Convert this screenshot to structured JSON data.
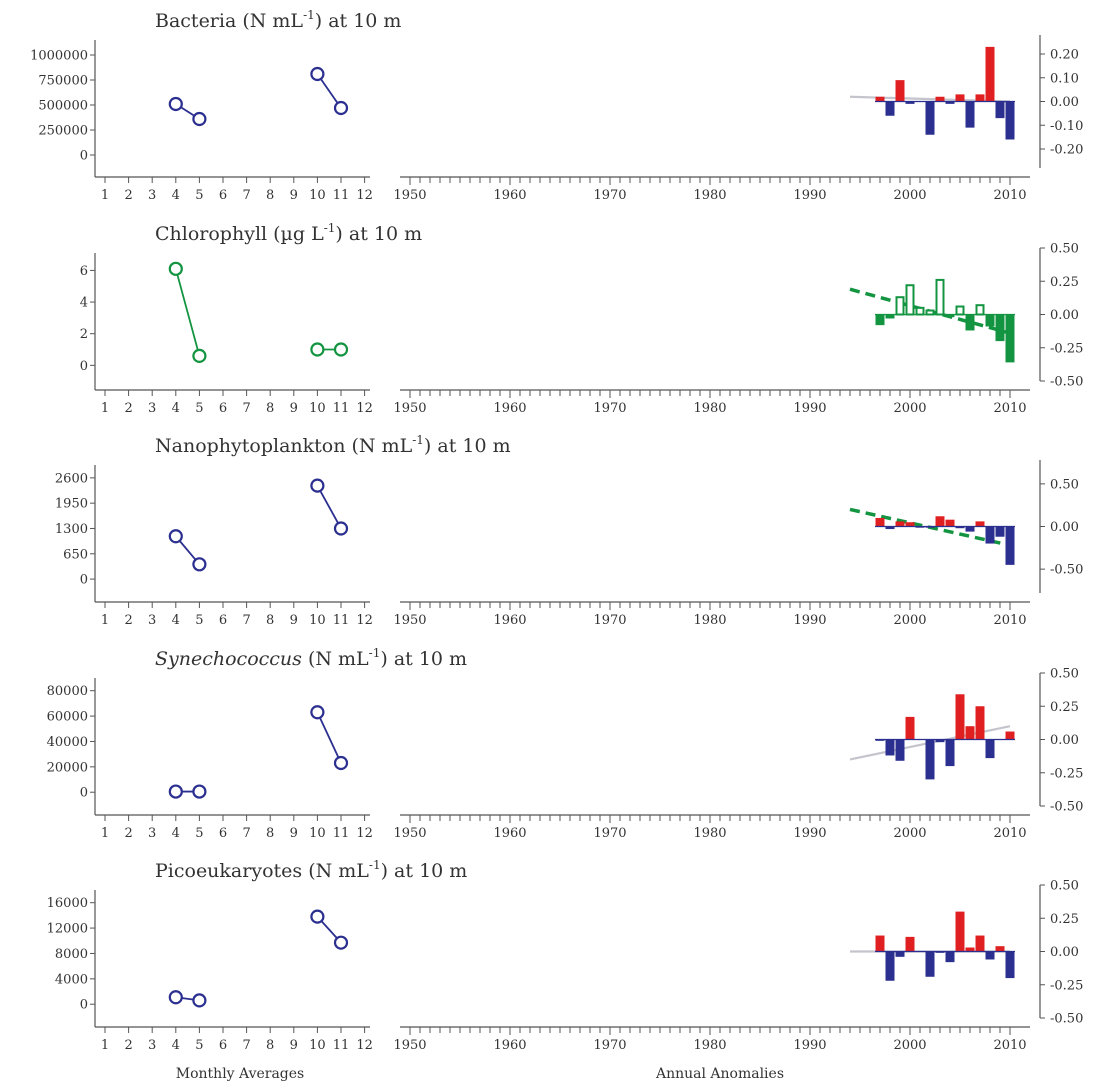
{
  "footer": {
    "monthly_label": "Monthly Averages",
    "annual_label": "Annual Anomalies"
  },
  "colors": {
    "blue": "#2b2f8f",
    "red": "#e02020",
    "green": "#139440",
    "trend_gray": "#c4c4cc"
  },
  "chart_data": [
    {
      "type": "line+bar",
      "title_prefix": "Bacteria (N mL",
      "title_italic": "",
      "title_sup": "-1",
      "title_suffix": ") at 10 m",
      "monthly": {
        "x_ticks": [
          "1",
          "2",
          "3",
          "4",
          "5",
          "6",
          "7",
          "8",
          "9",
          "10",
          "11",
          "12"
        ],
        "y_ticks": [
          "0",
          "250000",
          "500000",
          "750000",
          "1000000"
        ],
        "y_tick_values": [
          0,
          250000,
          500000,
          750000,
          1000000
        ],
        "ylim": [
          -100000,
          1150000
        ],
        "color": "blue",
        "segments": [
          [
            [
              4,
              510000
            ],
            [
              5,
              360000
            ]
          ],
          [
            [
              10,
              810000
            ],
            [
              11,
              470000
            ]
          ]
        ]
      },
      "annual": {
        "x_ticks": [
          "1950",
          "1960",
          "1970",
          "1980",
          "1990",
          "2000",
          "2010"
        ],
        "xlim": [
          1949,
          2011
        ],
        "y_ticks": [
          "-0.20",
          "-0.10",
          "0.00",
          "0.10",
          "0.20"
        ],
        "y_tick_values": [
          -0.2,
          -0.1,
          0,
          0.1,
          0.2
        ],
        "ylim": [
          -0.28,
          0.28
        ],
        "style": "solid",
        "pos_color": "red",
        "neg_color": "blue",
        "bars": [
          {
            "year": 1997,
            "value": 0.02
          },
          {
            "year": 1998,
            "value": -0.06
          },
          {
            "year": 1999,
            "value": 0.09
          },
          {
            "year": 2000,
            "value": -0.01
          },
          {
            "year": 2002,
            "value": -0.14
          },
          {
            "year": 2003,
            "value": 0.02
          },
          {
            "year": 2004,
            "value": -0.01
          },
          {
            "year": 2005,
            "value": 0.03
          },
          {
            "year": 2006,
            "value": -0.11
          },
          {
            "year": 2007,
            "value": 0.03
          },
          {
            "year": 2008,
            "value": 0.23
          },
          {
            "year": 2009,
            "value": -0.07
          },
          {
            "year": 2010,
            "value": -0.16
          }
        ],
        "trend": {
          "x": [
            1994,
            2010
          ],
          "y": [
            0.02,
            0.0
          ],
          "color": "trend_gray",
          "dashed": false
        }
      }
    },
    {
      "type": "line+bar",
      "title_prefix": "Chlorophyll (µg L",
      "title_italic": "",
      "title_sup": "-1",
      "title_suffix": ") at 10 m",
      "monthly": {
        "x_ticks": [
          "1",
          "2",
          "3",
          "4",
          "5",
          "6",
          "7",
          "8",
          "9",
          "10",
          "11",
          "12"
        ],
        "y_ticks": [
          "0",
          "2",
          "4",
          "6"
        ],
        "y_tick_values": [
          0,
          2,
          4,
          6
        ],
        "ylim": [
          -0.8,
          7.1
        ],
        "color": "green",
        "segments": [
          [
            [
              4,
              6.1
            ],
            [
              5,
              0.6
            ]
          ],
          [
            [
              10,
              1.0
            ],
            [
              11,
              1.0
            ]
          ]
        ]
      },
      "annual": {
        "x_ticks": [
          "1950",
          "1960",
          "1970",
          "1980",
          "1990",
          "2000",
          "2010"
        ],
        "xlim": [
          1949,
          2011
        ],
        "y_ticks": [
          "-0.50",
          "-0.25",
          "0.00",
          "0.25",
          "0.50"
        ],
        "y_tick_values": [
          -0.5,
          -0.25,
          0,
          0.25,
          0.5
        ],
        "ylim": [
          -0.5,
          0.5
        ],
        "style": "green",
        "pos_color": "green",
        "neg_color": "green",
        "bars": [
          {
            "year": 1997,
            "value": -0.08
          },
          {
            "year": 1998,
            "value": -0.03
          },
          {
            "year": 1999,
            "value": 0.13
          },
          {
            "year": 2000,
            "value": 0.22
          },
          {
            "year": 2001,
            "value": 0.05
          },
          {
            "year": 2002,
            "value": 0.03
          },
          {
            "year": 2003,
            "value": 0.26
          },
          {
            "year": 2004,
            "value": -0.02
          },
          {
            "year": 2005,
            "value": 0.06
          },
          {
            "year": 2006,
            "value": -0.12
          },
          {
            "year": 2007,
            "value": 0.07
          },
          {
            "year": 2008,
            "value": -0.09
          },
          {
            "year": 2009,
            "value": -0.2
          },
          {
            "year": 2010,
            "value": -0.36
          }
        ],
        "trend": {
          "x": [
            1994,
            2010
          ],
          "y": [
            0.19,
            -0.14
          ],
          "color": "green",
          "dashed": true
        }
      }
    },
    {
      "type": "line+bar",
      "title_prefix": "Nanophytoplankton (N mL",
      "title_italic": "",
      "title_sup": "-1",
      "title_suffix": ") at 10 m",
      "monthly": {
        "x_ticks": [
          "1",
          "2",
          "3",
          "4",
          "5",
          "6",
          "7",
          "8",
          "9",
          "10",
          "11",
          "12"
        ],
        "y_ticks": [
          "0",
          "650",
          "1300",
          "1950",
          "2600"
        ],
        "y_tick_values": [
          0,
          650,
          1300,
          1950,
          2600
        ],
        "ylim": [
          -280,
          2930
        ],
        "color": "blue",
        "segments": [
          [
            [
              4,
              1100
            ],
            [
              5,
              380
            ]
          ],
          [
            [
              10,
              2400
            ],
            [
              11,
              1300
            ]
          ]
        ]
      },
      "annual": {
        "x_ticks": [
          "1950",
          "1960",
          "1970",
          "1980",
          "1990",
          "2000",
          "2010"
        ],
        "xlim": [
          1949,
          2011
        ],
        "y_ticks": [
          "-0.50",
          "0.00",
          "0.50"
        ],
        "y_tick_values": [
          -0.5,
          0,
          0.5
        ],
        "ylim": [
          -0.78,
          0.78
        ],
        "style": "solid",
        "pos_color": "red",
        "neg_color": "blue",
        "bars": [
          {
            "year": 1997,
            "value": 0.1
          },
          {
            "year": 1998,
            "value": -0.03
          },
          {
            "year": 1999,
            "value": 0.06
          },
          {
            "year": 2000,
            "value": 0.05
          },
          {
            "year": 2001,
            "value": -0.01
          },
          {
            "year": 2002,
            "value": -0.01
          },
          {
            "year": 2003,
            "value": 0.12
          },
          {
            "year": 2004,
            "value": 0.08
          },
          {
            "year": 2005,
            "value": -0.02
          },
          {
            "year": 2006,
            "value": -0.06
          },
          {
            "year": 2007,
            "value": 0.06
          },
          {
            "year": 2008,
            "value": -0.2
          },
          {
            "year": 2009,
            "value": -0.12
          },
          {
            "year": 2010,
            "value": -0.45
          }
        ],
        "trend": {
          "x": [
            1994,
            2010
          ],
          "y": [
            0.2,
            -0.22
          ],
          "color": "green",
          "dashed": true
        }
      }
    },
    {
      "type": "line+bar",
      "title_prefix": "",
      "title_italic": "Synechococcus",
      "title_sup": "-1",
      "title_suffix": ") at 10 m",
      "title_mid": " (N mL",
      "monthly": {
        "x_ticks": [
          "1",
          "2",
          "3",
          "4",
          "5",
          "6",
          "7",
          "8",
          "9",
          "10",
          "11",
          "12"
        ],
        "y_ticks": [
          "0",
          "20000",
          "40000",
          "60000",
          "80000"
        ],
        "y_tick_values": [
          0,
          20000,
          40000,
          60000,
          80000
        ],
        "ylim": [
          -8500,
          90000
        ],
        "color": "blue",
        "segments": [
          [
            [
              4,
              500
            ],
            [
              5,
              500
            ]
          ],
          [
            [
              10,
              63000
            ],
            [
              11,
              23000
            ]
          ]
        ]
      },
      "annual": {
        "x_ticks": [
          "1950",
          "1960",
          "1970",
          "1980",
          "1990",
          "2000",
          "2010"
        ],
        "xlim": [
          1949,
          2011
        ],
        "y_ticks": [
          "-0.50",
          "-0.25",
          "0.00",
          "0.25",
          "0.50"
        ],
        "y_tick_values": [
          -0.5,
          -0.25,
          0,
          0.25,
          0.5
        ],
        "ylim": [
          -0.5,
          0.5
        ],
        "style": "solid",
        "pos_color": "red",
        "neg_color": "blue",
        "bars": [
          {
            "year": 1997,
            "value": -0.01
          },
          {
            "year": 1998,
            "value": -0.12
          },
          {
            "year": 1999,
            "value": -0.16
          },
          {
            "year": 2000,
            "value": 0.17
          },
          {
            "year": 2002,
            "value": -0.3
          },
          {
            "year": 2003,
            "value": -0.02
          },
          {
            "year": 2004,
            "value": -0.2
          },
          {
            "year": 2005,
            "value": 0.34
          },
          {
            "year": 2006,
            "value": 0.1
          },
          {
            "year": 2007,
            "value": 0.25
          },
          {
            "year": 2008,
            "value": -0.14
          },
          {
            "year": 2010,
            "value": 0.06
          }
        ],
        "trend": {
          "x": [
            1994,
            2010
          ],
          "y": [
            -0.15,
            0.1
          ],
          "color": "trend_gray",
          "dashed": false
        }
      }
    },
    {
      "type": "line+bar",
      "title_prefix": "Picoeukaryotes (N mL",
      "title_italic": "",
      "title_sup": "-1",
      "title_suffix": ") at 10 m",
      "monthly": {
        "x_ticks": [
          "1",
          "2",
          "3",
          "4",
          "5",
          "6",
          "7",
          "8",
          "9",
          "10",
          "11",
          "12"
        ],
        "y_ticks": [
          "0",
          "4000",
          "8000",
          "12000",
          "16000"
        ],
        "y_tick_values": [
          0,
          4000,
          8000,
          12000,
          16000
        ],
        "ylim": [
          -1700,
          18000
        ],
        "color": "blue",
        "segments": [
          [
            [
              4,
              1100
            ],
            [
              5,
              600
            ]
          ],
          [
            [
              10,
              13800
            ],
            [
              11,
              9700
            ]
          ]
        ]
      },
      "annual": {
        "x_ticks": [
          "1950",
          "1960",
          "1970",
          "1980",
          "1990",
          "2000",
          "2010"
        ],
        "xlim": [
          1949,
          2011
        ],
        "y_ticks": [
          "-0.50",
          "-0.25",
          "0.00",
          "0.25",
          "0.50"
        ],
        "y_tick_values": [
          -0.5,
          -0.25,
          0,
          0.25,
          0.5
        ],
        "ylim": [
          -0.5,
          0.5
        ],
        "style": "solid",
        "pos_color": "red",
        "neg_color": "blue",
        "bars": [
          {
            "year": 1997,
            "value": 0.12
          },
          {
            "year": 1998,
            "value": -0.22
          },
          {
            "year": 1999,
            "value": -0.04
          },
          {
            "year": 2000,
            "value": 0.11
          },
          {
            "year": 2002,
            "value": -0.19
          },
          {
            "year": 2003,
            "value": -0.01
          },
          {
            "year": 2004,
            "value": -0.08
          },
          {
            "year": 2005,
            "value": 0.3
          },
          {
            "year": 2006,
            "value": 0.03
          },
          {
            "year": 2007,
            "value": 0.12
          },
          {
            "year": 2008,
            "value": -0.06
          },
          {
            "year": 2009,
            "value": 0.04
          },
          {
            "year": 2010,
            "value": -0.2
          }
        ],
        "trend": {
          "x": [
            1994,
            2010
          ],
          "y": [
            0.0,
            0.0
          ],
          "color": "trend_gray",
          "dashed": false
        }
      }
    }
  ]
}
